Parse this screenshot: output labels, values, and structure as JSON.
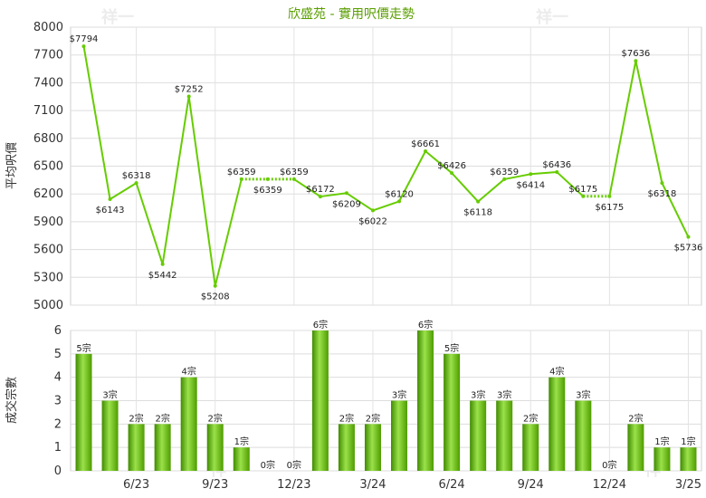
{
  "chart_data": [
    {
      "type": "line",
      "title": "欣盛苑 - 實用呎價走勢",
      "ylabel": "平均呎價",
      "ylim": [
        5000,
        8000
      ],
      "yticks": [
        5000,
        5300,
        5600,
        5900,
        6200,
        6500,
        6800,
        7100,
        7400,
        7700,
        8000
      ],
      "grid": true,
      "series": [
        {
          "values": [
            7794,
            6143,
            6318,
            5442,
            7252,
            5208,
            6359,
            6359,
            6359,
            6172,
            6209,
            6022,
            6120,
            6661,
            6426,
            6118,
            6359,
            6414,
            6436,
            6175,
            6175,
            7636,
            6318,
            5736
          ],
          "labels": [
            "$7794",
            "$6143",
            "$6318",
            "$5442",
            "$7252",
            "$5208",
            "$6359",
            "$6359",
            "$6359",
            "$6172",
            "$6209",
            "$6022",
            "$6120",
            "$6661",
            "$6426",
            "$6118",
            "$6359",
            "$6414",
            "$6436",
            "$6175",
            "$6175",
            "$7636",
            "$6318",
            "$5736"
          ],
          "dotted_segments": [
            [
              6,
              8
            ],
            [
              19,
              20
            ]
          ],
          "color": "#66cc00"
        }
      ]
    },
    {
      "type": "bar",
      "ylabel": "成交宗數",
      "ylim": [
        0,
        6
      ],
      "yticks": [
        0,
        1,
        2,
        3,
        4,
        5,
        6
      ],
      "grid": true,
      "x_tick_labels": [
        "6/23",
        "9/23",
        "12/23",
        "3/24",
        "6/24",
        "9/24",
        "12/24",
        "3/25"
      ],
      "series": [
        {
          "values": [
            5,
            3,
            2,
            2,
            4,
            2,
            1,
            0,
            0,
            6,
            2,
            2,
            3,
            6,
            5,
            3,
            3,
            2,
            4,
            3,
            0,
            2,
            1,
            1
          ],
          "labels": [
            "5宗",
            "3宗",
            "2宗",
            "2宗",
            "4宗",
            "2宗",
            "1宗",
            "0宗",
            "0宗",
            "6宗",
            "2宗",
            "2宗",
            "3宗",
            "6宗",
            "5宗",
            "3宗",
            "3宗",
            "2宗",
            "4宗",
            "3宗",
            "0宗",
            "2宗",
            "1宗",
            "1宗"
          ],
          "color": "#66bb00"
        }
      ]
    }
  ],
  "watermark": "祥一"
}
